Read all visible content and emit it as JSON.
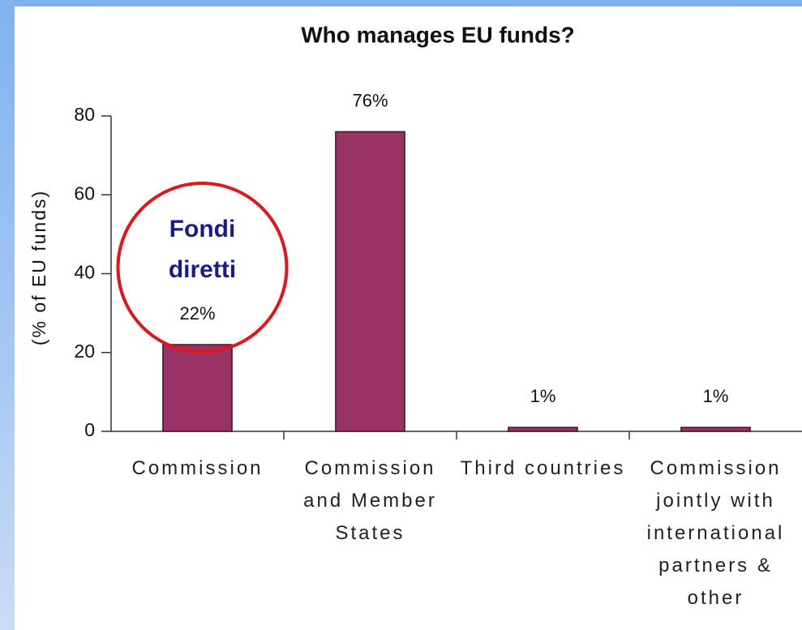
{
  "chart_data": {
    "type": "bar",
    "title": "Who manages EU funds?",
    "y_axis_label": "(% of EU funds)",
    "categories": [
      "Commission",
      "Commission and Member States",
      "Third countries",
      "Commission jointly with international partners & other"
    ],
    "values": [
      22,
      76,
      1,
      1
    ],
    "value_labels": [
      "22%",
      "76%",
      "1%",
      "1%"
    ],
    "color": "#993366",
    "ylim": [
      0,
      80
    ],
    "yticks": [
      0,
      20,
      40,
      60,
      80
    ],
    "annotation": "Fondi diretti",
    "annotation_color": "#e0161b"
  }
}
